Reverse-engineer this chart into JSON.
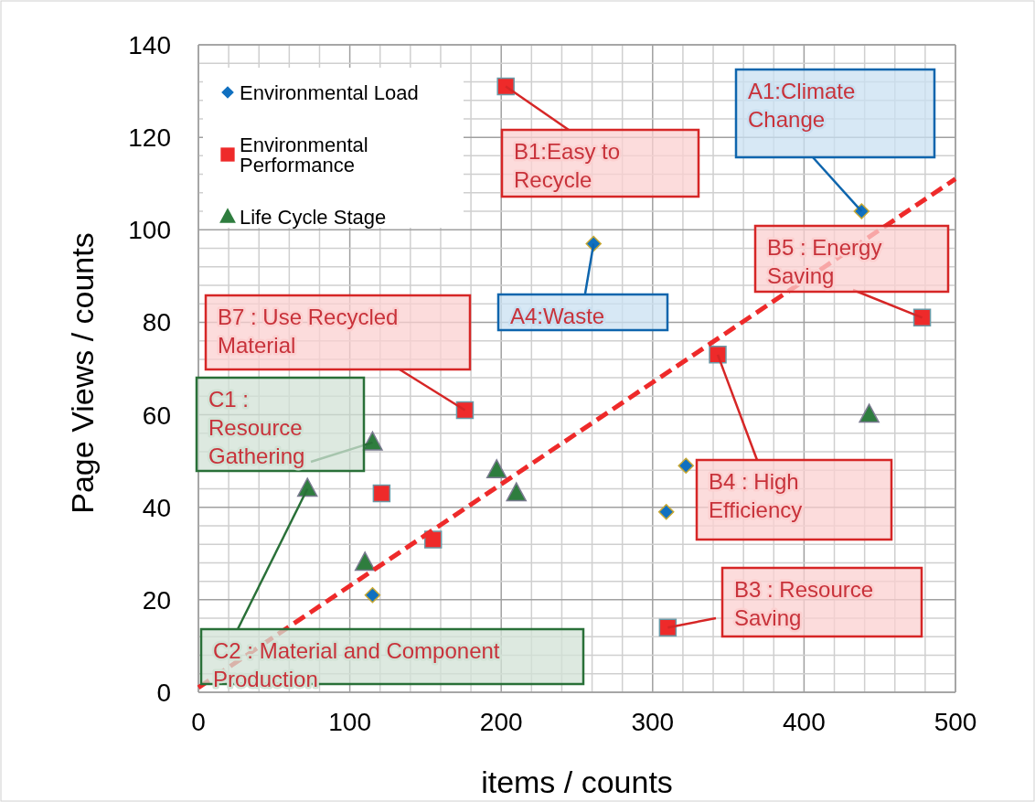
{
  "chart_data": {
    "type": "scatter",
    "xlabel": "items / counts",
    "ylabel": "Page Views / counts",
    "xlim": [
      0,
      500
    ],
    "xticks": [
      0,
      100,
      200,
      300,
      400,
      500
    ],
    "ylim": [
      0,
      140
    ],
    "yticks": [
      0,
      20,
      40,
      60,
      80,
      100,
      120,
      140
    ],
    "grid": true,
    "legend": "top left",
    "series": [
      {
        "name": "Environmental Load",
        "color": "#1070c0",
        "marker": "diamond",
        "x": [
          438,
          261,
          322,
          309,
          115
        ],
        "values": [
          104,
          97,
          49,
          39,
          21
        ]
      },
      {
        "name": "Environmental Performance",
        "color": "#ee2a2a",
        "marker": "square",
        "x": [
          203,
          478,
          343,
          176,
          121,
          155,
          310
        ],
        "values": [
          131,
          81,
          73,
          61,
          43,
          33,
          14
        ]
      },
      {
        "name": "Life Cycle Stage",
        "color": "#2e7d3e",
        "marker": "triangle",
        "x": [
          115,
          72,
          197,
          210,
          110,
          443
        ],
        "values": [
          54,
          44,
          48,
          43,
          28,
          60
        ]
      },
      {
        "type": "line",
        "color": "#ee2a2a",
        "line_style": "dashed",
        "marker": "none",
        "x": [
          0,
          500
        ],
        "values": [
          1,
          111
        ]
      }
    ],
    "annotations": [
      {
        "text": "A1:Climate Change",
        "x": 438,
        "y": 104
      },
      {
        "text": "A4:Waste",
        "x": 261,
        "y": 97
      },
      {
        "text": "B1:Easy to Recycle",
        "x": 203,
        "y": 131
      },
      {
        "text": "B5 : Energy Saving",
        "x": 478,
        "y": 81
      },
      {
        "text": "B7 : Use Recycled Material",
        "x": 176,
        "y": 61
      },
      {
        "text": "B4 : High Efficiency",
        "x": 343,
        "y": 73
      },
      {
        "text": "B3 : Resource Saving",
        "x": 310,
        "y": 14
      },
      {
        "text": "C1 : Resource Gathering",
        "x": 115,
        "y": 54
      },
      {
        "text": "C2 : Material and Component Production",
        "x": 72,
        "y": 44
      }
    ]
  }
}
